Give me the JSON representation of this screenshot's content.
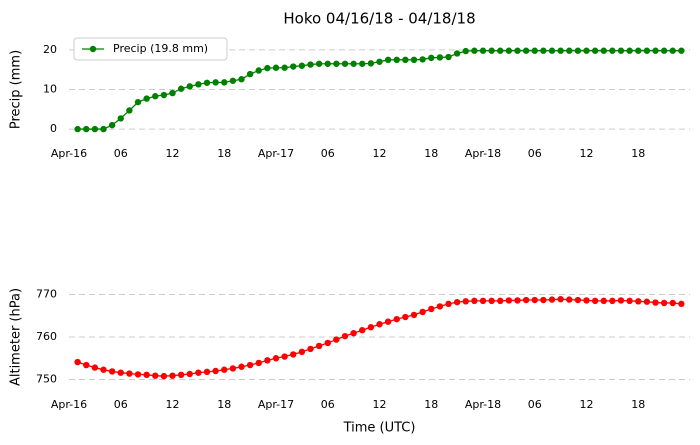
{
  "chart_data": [
    {
      "type": "line",
      "title": "Hoko 04/16/18 - 04/18/18",
      "ylabel": "Precip (mm)",
      "x": [
        1,
        2,
        3,
        4,
        5,
        6,
        7,
        8,
        9,
        10,
        11,
        12,
        13,
        14,
        15,
        16,
        17,
        18,
        19,
        20,
        21,
        22,
        23,
        24,
        25,
        26,
        27,
        28,
        29,
        30,
        31,
        32,
        33,
        34,
        35,
        36,
        37,
        38,
        39,
        40,
        41,
        42,
        43,
        44,
        45,
        46,
        47,
        48,
        49,
        50,
        51,
        52,
        53,
        54,
        55,
        56,
        57,
        58,
        59,
        60,
        61,
        62,
        63,
        64,
        65,
        66,
        67,
        68,
        69,
        70,
        71
      ],
      "series": [
        {
          "name": "Precip (19.8 mm)",
          "color": "#008000",
          "values": [
            0,
            0,
            0,
            0,
            1,
            2.7,
            4.7,
            6.8,
            7.7,
            8.3,
            8.6,
            9.1,
            10.2,
            10.8,
            11.3,
            11.7,
            11.8,
            11.8,
            12.2,
            12.6,
            13.9,
            14.8,
            15.4,
            15.5,
            15.5,
            15.8,
            16,
            16.3,
            16.5,
            16.5,
            16.5,
            16.5,
            16.5,
            16.5,
            16.6,
            17,
            17.5,
            17.5,
            17.5,
            17.5,
            17.6,
            18,
            18.1,
            18.2,
            19.1,
            19.7,
            19.8,
            19.8,
            19.8,
            19.8,
            19.8,
            19.8,
            19.8,
            19.8,
            19.8,
            19.8,
            19.8,
            19.8,
            19.8,
            19.8,
            19.8,
            19.8,
            19.8,
            19.8,
            19.8,
            19.8,
            19.8,
            19.8,
            19.8,
            19.8,
            19.8
          ]
        }
      ],
      "xlim": [
        0,
        72
      ],
      "xticks": [
        {
          "value": 0,
          "label": "Apr-16"
        },
        {
          "value": 6,
          "label": "06"
        },
        {
          "value": 12,
          "label": "12"
        },
        {
          "value": 18,
          "label": "18"
        },
        {
          "value": 24,
          "label": "Apr-17"
        },
        {
          "value": 30,
          "label": "06"
        },
        {
          "value": 36,
          "label": "12"
        },
        {
          "value": 42,
          "label": "18"
        },
        {
          "value": 48,
          "label": "Apr-18"
        },
        {
          "value": 54,
          "label": "06"
        },
        {
          "value": 60,
          "label": "12"
        },
        {
          "value": 66,
          "label": "18"
        }
      ],
      "ylim": [
        -2,
        22
      ],
      "yticks": [
        0,
        10,
        20
      ],
      "grid": true,
      "legend": "upper left"
    },
    {
      "type": "line",
      "ylabel": "Altimeter (hPa)",
      "xlabel": "Time (UTC)",
      "x": [
        1,
        2,
        3,
        4,
        5,
        6,
        7,
        8,
        9,
        10,
        11,
        12,
        13,
        14,
        15,
        16,
        17,
        18,
        19,
        20,
        21,
        22,
        23,
        24,
        25,
        26,
        27,
        28,
        29,
        30,
        31,
        32,
        33,
        34,
        35,
        36,
        37,
        38,
        39,
        40,
        41,
        42,
        43,
        44,
        45,
        46,
        47,
        48,
        49,
        50,
        51,
        52,
        53,
        54,
        55,
        56,
        57,
        58,
        59,
        60,
        61,
        62,
        63,
        64,
        65,
        66,
        67,
        68,
        69,
        70,
        71
      ],
      "series": [
        {
          "color": "#ff0000",
          "values": [
            754.1,
            753.4,
            752.8,
            752.3,
            751.9,
            751.6,
            751.4,
            751.2,
            751.1,
            750.9,
            750.8,
            750.9,
            751.1,
            751.3,
            751.6,
            751.8,
            752,
            752.3,
            752.6,
            753,
            753.4,
            753.9,
            754.5,
            755,
            755.4,
            755.9,
            756.5,
            757.2,
            757.9,
            758.6,
            759.4,
            760.2,
            760.9,
            761.6,
            762.3,
            763,
            763.6,
            764.2,
            764.7,
            765.2,
            765.9,
            766.6,
            767.2,
            767.8,
            768.2,
            768.4,
            768.5,
            768.5,
            768.5,
            768.5,
            768.6,
            768.6,
            768.7,
            768.7,
            768.7,
            768.8,
            768.9,
            768.8,
            768.7,
            768.6,
            768.5,
            768.5,
            768.5,
            768.6,
            768.5,
            768.4,
            768.3,
            768.1,
            768,
            768,
            767.8
          ]
        }
      ],
      "xlim": [
        0,
        72
      ],
      "xticks": [
        {
          "value": 0,
          "label": "Apr-16"
        },
        {
          "value": 6,
          "label": "06"
        },
        {
          "value": 12,
          "label": "12"
        },
        {
          "value": 18,
          "label": "18"
        },
        {
          "value": 24,
          "label": "Apr-17"
        },
        {
          "value": 30,
          "label": "06"
        },
        {
          "value": 36,
          "label": "12"
        },
        {
          "value": 42,
          "label": "18"
        },
        {
          "value": 48,
          "label": "Apr-18"
        },
        {
          "value": 54,
          "label": "06"
        },
        {
          "value": 60,
          "label": "12"
        },
        {
          "value": 66,
          "label": "18"
        }
      ],
      "ylim": [
        748,
        772
      ],
      "yticks": [
        750,
        760,
        770
      ],
      "grid": true
    }
  ]
}
